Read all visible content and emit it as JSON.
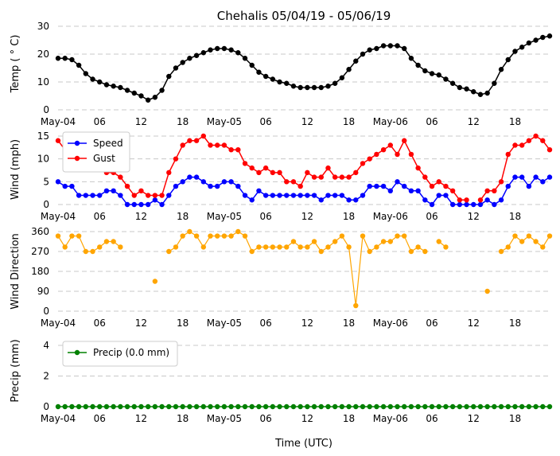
{
  "title": "Chehalis 05/04/19 - 05/06/19",
  "x_tick_labels": [
    "May-04",
    "06",
    "12",
    "18",
    "May-05",
    "06",
    "12",
    "18",
    "May-06",
    "06",
    "12",
    "18"
  ],
  "x_axis_label": "Time (UTC)",
  "chart_data": [
    {
      "type": "line",
      "ylabel": "Temp ( ° C)",
      "ylim": [
        0,
        30
      ],
      "yticks": [
        0,
        10,
        20,
        30
      ],
      "x_unit": "hours since May-04 00 UTC",
      "x": [
        0,
        1,
        2,
        3,
        4,
        5,
        6,
        7,
        8,
        9,
        10,
        11,
        12,
        13,
        14,
        15,
        16,
        17,
        18,
        19,
        20,
        21,
        22,
        23,
        24,
        25,
        26,
        27,
        28,
        29,
        30,
        31,
        32,
        33,
        34,
        35,
        36,
        37,
        38,
        39,
        40,
        41,
        42,
        43,
        44,
        45,
        46,
        47,
        48,
        49,
        50,
        51,
        52,
        53,
        54,
        55,
        56,
        57,
        58,
        59,
        60,
        61,
        62,
        63,
        64,
        65,
        66,
        67,
        68,
        69,
        70,
        71
      ],
      "series": [
        {
          "name": "",
          "color": "#000000",
          "values": [
            18.5,
            18.5,
            18,
            16,
            13,
            11,
            10,
            9,
            8.5,
            8,
            7,
            6,
            5,
            3.5,
            4.5,
            7,
            12,
            15,
            17,
            18.5,
            19.5,
            20.5,
            21.5,
            22,
            22,
            21.5,
            20.5,
            18.5,
            16,
            13.5,
            12,
            11,
            10,
            9.5,
            8.5,
            8,
            8,
            8,
            8,
            8.5,
            9.5,
            11.5,
            14.5,
            17.5,
            20,
            21.5,
            22,
            23,
            23,
            23,
            22,
            18.5,
            16,
            14,
            13,
            12.5,
            11,
            9.5,
            8,
            7.5,
            6.5,
            5.5,
            6,
            9.5,
            14.5,
            18,
            21,
            22.5,
            24,
            25,
            26,
            26.5
          ]
        }
      ],
      "grid": "y-dashed"
    },
    {
      "type": "line",
      "ylabel": "Wind (mph)",
      "ylim": [
        0,
        15
      ],
      "yticks": [
        0,
        5,
        10,
        15
      ],
      "x": [
        0,
        1,
        2,
        3,
        4,
        5,
        6,
        7,
        8,
        9,
        10,
        11,
        12,
        13,
        14,
        15,
        16,
        17,
        18,
        19,
        20,
        21,
        22,
        23,
        24,
        25,
        26,
        27,
        28,
        29,
        30,
        31,
        32,
        33,
        34,
        35,
        36,
        37,
        38,
        39,
        40,
        41,
        42,
        43,
        44,
        45,
        46,
        47,
        48,
        49,
        50,
        51,
        52,
        53,
        54,
        55,
        56,
        57,
        58,
        59,
        60,
        61,
        62,
        63,
        64,
        65,
        66,
        67,
        68,
        69,
        70,
        71
      ],
      "legend": "top-left",
      "series": [
        {
          "name": "Speed",
          "color": "#0000ff",
          "values": [
            5,
            4,
            4,
            2,
            2,
            2,
            2,
            3,
            3,
            2,
            0,
            0,
            0,
            0,
            1,
            0,
            2,
            4,
            5,
            6,
            6,
            5,
            4,
            4,
            5,
            5,
            4,
            2,
            1,
            3,
            2,
            2,
            2,
            2,
            2,
            2,
            2,
            2,
            1,
            2,
            2,
            2,
            1,
            1,
            2,
            4,
            4,
            4,
            3,
            5,
            4,
            3,
            3,
            1,
            0,
            2,
            2,
            0,
            0,
            0,
            0,
            0,
            1,
            0,
            1,
            4,
            6,
            6,
            4,
            6,
            5,
            6
          ]
        },
        {
          "name": "Gust",
          "color": "#ff0000",
          "values": [
            14,
            12,
            9,
            9,
            8,
            8,
            9,
            7,
            7,
            6,
            4,
            2,
            3,
            2,
            2,
            2,
            7,
            10,
            13,
            14,
            14,
            15,
            13,
            13,
            13,
            12,
            12,
            9,
            8,
            7,
            8,
            7,
            7,
            5,
            5,
            4,
            7,
            6,
            6,
            8,
            6,
            6,
            6,
            7,
            9,
            10,
            11,
            12,
            13,
            11,
            14,
            11,
            8,
            6,
            4,
            5,
            4,
            3,
            1,
            1,
            null,
            1,
            3,
            3,
            5,
            11,
            13,
            13,
            14,
            15,
            14,
            12
          ]
        }
      ],
      "grid": "y-dashed"
    },
    {
      "type": "scatter",
      "ylabel": "Wind Direction",
      "ylim": [
        0,
        360
      ],
      "yticks": [
        0,
        90,
        180,
        270,
        360
      ],
      "x": [
        0,
        1,
        2,
        3,
        4,
        5,
        6,
        7,
        8,
        9,
        10,
        11,
        12,
        13,
        14,
        15,
        16,
        17,
        18,
        19,
        20,
        21,
        22,
        23,
        24,
        25,
        26,
        27,
        28,
        29,
        30,
        31,
        32,
        33,
        34,
        35,
        36,
        37,
        38,
        39,
        40,
        41,
        42,
        43,
        44,
        45,
        46,
        47,
        48,
        49,
        50,
        51,
        52,
        53,
        54,
        55,
        56,
        57,
        58,
        59,
        60,
        61,
        62,
        63,
        64,
        65,
        66,
        67,
        68,
        69,
        70,
        71
      ],
      "series": [
        {
          "name": "",
          "color": "#ffa500",
          "values": [
            340,
            290,
            340,
            340,
            270,
            270,
            290,
            315,
            315,
            290,
            null,
            null,
            null,
            null,
            135,
            null,
            270,
            290,
            340,
            360,
            340,
            290,
            340,
            340,
            340,
            340,
            360,
            340,
            270,
            290,
            290,
            290,
            290,
            290,
            315,
            290,
            290,
            315,
            270,
            290,
            315,
            340,
            290,
            25,
            340,
            270,
            290,
            315,
            315,
            340,
            340,
            270,
            290,
            270,
            null,
            315,
            290,
            null,
            null,
            null,
            null,
            null,
            90,
            null,
            270,
            290,
            340,
            315,
            340,
            315,
            290,
            340
          ]
        }
      ],
      "grid": "y-dashed"
    },
    {
      "type": "line",
      "ylabel": "Precip (mm)",
      "ylim": [
        0,
        4
      ],
      "yticks": [
        0,
        2,
        4
      ],
      "x": [
        0,
        1,
        2,
        3,
        4,
        5,
        6,
        7,
        8,
        9,
        10,
        11,
        12,
        13,
        14,
        15,
        16,
        17,
        18,
        19,
        20,
        21,
        22,
        23,
        24,
        25,
        26,
        27,
        28,
        29,
        30,
        31,
        32,
        33,
        34,
        35,
        36,
        37,
        38,
        39,
        40,
        41,
        42,
        43,
        44,
        45,
        46,
        47,
        48,
        49,
        50,
        51,
        52,
        53,
        54,
        55,
        56,
        57,
        58,
        59,
        60,
        61,
        62,
        63,
        64,
        65,
        66,
        67,
        68,
        69,
        70,
        71
      ],
      "legend": "top-left",
      "series": [
        {
          "name": "Precip (0.0 mm)",
          "color": "#008000",
          "values": [
            0,
            0,
            0,
            0,
            0,
            0,
            0,
            0,
            0,
            0,
            0,
            0,
            0,
            0,
            0,
            0,
            0,
            0,
            0,
            0,
            0,
            0,
            0,
            0,
            0,
            0,
            0,
            0,
            0,
            0,
            0,
            0,
            0,
            0,
            0,
            0,
            0,
            0,
            0,
            0,
            0,
            0,
            0,
            0,
            0,
            0,
            0,
            0,
            0,
            0,
            0,
            0,
            0,
            0,
            0,
            0,
            0,
            0,
            0,
            0,
            0,
            0,
            0,
            0,
            0,
            0,
            0,
            0,
            0,
            0,
            0,
            0
          ]
        }
      ],
      "grid": "y-dashed"
    }
  ]
}
